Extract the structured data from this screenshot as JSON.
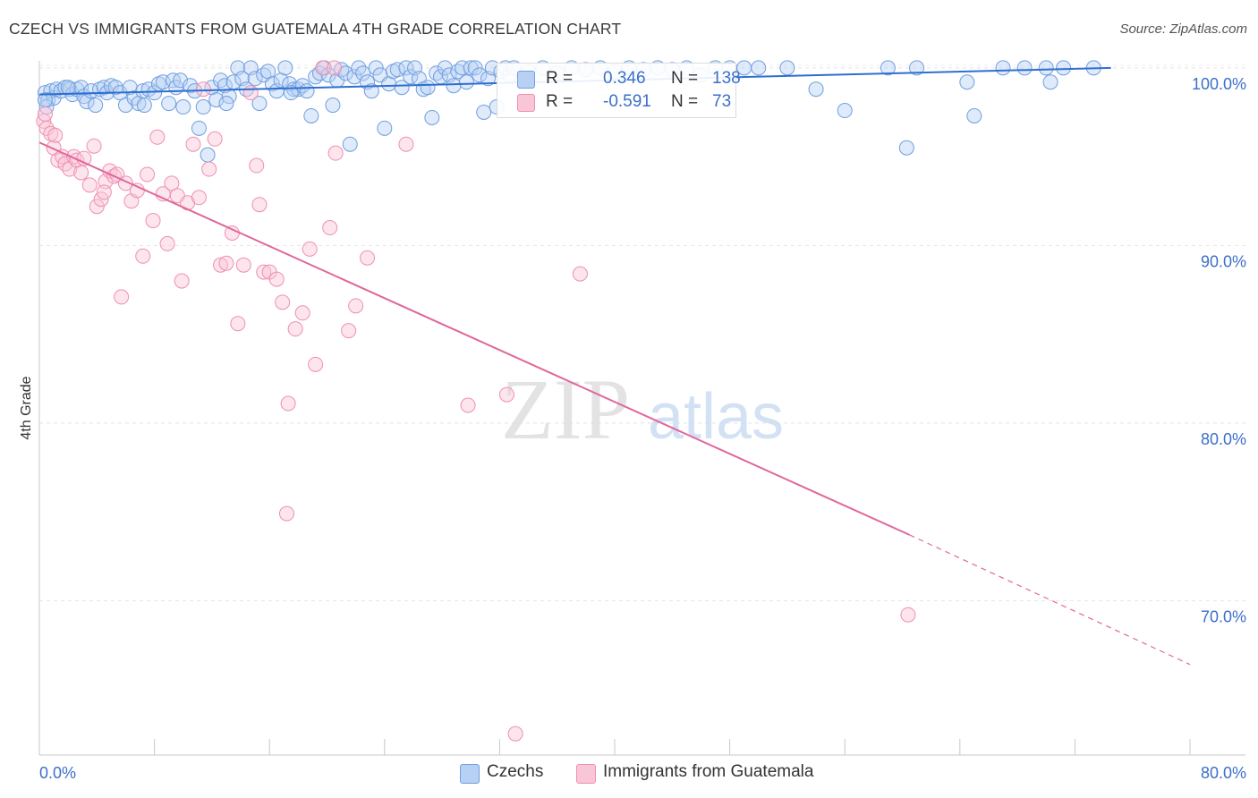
{
  "header": {
    "title": "CZECH VS IMMIGRANTS FROM GUATEMALA 4TH GRADE CORRELATION CHART",
    "source": "Source: ZipAtlas.com"
  },
  "watermark": {
    "zip": "ZIP",
    "atlas": "atlas"
  },
  "legend": {
    "r_label": "R =",
    "n_label": "N =",
    "rows": [
      {
        "r": "0.346",
        "n": "138"
      },
      {
        "r": "-0.591",
        "n": "73"
      }
    ]
  },
  "chart_data": {
    "type": "scatter",
    "title": "CZECH VS IMMIGRANTS FROM GUATEMALA 4TH GRADE CORRELATION CHART",
    "xlabel": "",
    "ylabel": "4th Grade",
    "xlim": [
      0,
      80
    ],
    "ylim": [
      61.3,
      100.8
    ],
    "x_tick_labels": [
      "0.0%",
      "80.0%"
    ],
    "y_ticks": [
      100,
      90,
      80,
      70
    ],
    "y_tick_labels": [
      "100.0%",
      "90.0%",
      "80.0%",
      "70.0%"
    ],
    "grid": true,
    "legend_position": "top-center",
    "colors": {
      "czechs": "#6f9fe0",
      "guatemala": "#f08fb0",
      "czechs_line": "#2f6fd0",
      "guatemala_line": "#e0679a"
    },
    "series": [
      {
        "name": "Czechs",
        "r": 0.346,
        "n": 138,
        "trend": {
          "x": [
            0,
            74.5
          ],
          "y": [
            98.5,
            100.0
          ]
        },
        "points": [
          [
            0.4,
            98.6
          ],
          [
            0.6,
            98.2
          ],
          [
            0.8,
            98.7
          ],
          [
            1.0,
            98.3
          ],
          [
            1.2,
            98.8
          ],
          [
            1.5,
            98.7
          ],
          [
            1.8,
            98.9
          ],
          [
            2.1,
            98.8
          ],
          [
            2.3,
            98.5
          ],
          [
            2.6,
            98.8
          ],
          [
            2.9,
            98.9
          ],
          [
            3.1,
            98.4
          ],
          [
            3.3,
            98.1
          ],
          [
            3.6,
            98.7
          ],
          [
            3.9,
            97.9
          ],
          [
            4.2,
            98.8
          ],
          [
            4.5,
            98.9
          ],
          [
            4.7,
            98.6
          ],
          [
            5.0,
            99.0
          ],
          [
            5.3,
            98.9
          ],
          [
            5.6,
            98.6
          ],
          [
            6.0,
            97.9
          ],
          [
            6.3,
            98.9
          ],
          [
            6.6,
            98.3
          ],
          [
            6.9,
            98.0
          ],
          [
            7.2,
            98.7
          ],
          [
            7.6,
            98.8
          ],
          [
            8.0,
            98.6
          ],
          [
            8.3,
            99.1
          ],
          [
            8.6,
            99.2
          ],
          [
            9.0,
            98.0
          ],
          [
            9.3,
            99.3
          ],
          [
            9.5,
            98.9
          ],
          [
            9.8,
            99.3
          ],
          [
            10.0,
            97.8
          ],
          [
            10.5,
            99.0
          ],
          [
            10.8,
            98.7
          ],
          [
            11.1,
            96.6
          ],
          [
            11.4,
            97.8
          ],
          [
            11.7,
            95.1
          ],
          [
            12.0,
            98.9
          ],
          [
            12.3,
            98.2
          ],
          [
            12.6,
            99.3
          ],
          [
            12.9,
            99.0
          ],
          [
            13.2,
            98.4
          ],
          [
            13.5,
            99.2
          ],
          [
            13.8,
            100.0
          ],
          [
            14.1,
            99.4
          ],
          [
            14.4,
            98.8
          ],
          [
            14.7,
            100.0
          ],
          [
            15.0,
            99.4
          ],
          [
            15.3,
            98.0
          ],
          [
            15.6,
            99.6
          ],
          [
            15.9,
            99.8
          ],
          [
            16.2,
            99.1
          ],
          [
            16.5,
            98.7
          ],
          [
            16.8,
            99.3
          ],
          [
            17.1,
            100.0
          ],
          [
            17.4,
            99.1
          ],
          [
            17.7,
            98.8
          ],
          [
            18.0,
            98.8
          ],
          [
            18.3,
            99.0
          ],
          [
            18.6,
            98.7
          ],
          [
            18.9,
            97.3
          ],
          [
            19.2,
            99.5
          ],
          [
            19.5,
            99.7
          ],
          [
            19.8,
            100.0
          ],
          [
            20.1,
            99.6
          ],
          [
            20.4,
            97.9
          ],
          [
            20.7,
            99.3
          ],
          [
            21.0,
            99.9
          ],
          [
            21.3,
            99.7
          ],
          [
            21.6,
            95.7
          ],
          [
            21.9,
            99.5
          ],
          [
            22.2,
            100.0
          ],
          [
            22.5,
            99.7
          ],
          [
            22.8,
            99.2
          ],
          [
            23.1,
            98.7
          ],
          [
            23.4,
            100.0
          ],
          [
            23.7,
            99.6
          ],
          [
            24.0,
            96.6
          ],
          [
            24.3,
            99.1
          ],
          [
            24.6,
            99.8
          ],
          [
            24.9,
            99.9
          ],
          [
            25.2,
            98.9
          ],
          [
            25.5,
            100.0
          ],
          [
            25.8,
            99.5
          ],
          [
            26.1,
            100.0
          ],
          [
            26.4,
            99.4
          ],
          [
            26.7,
            98.8
          ],
          [
            27.0,
            98.9
          ],
          [
            27.3,
            97.2
          ],
          [
            27.6,
            99.7
          ],
          [
            27.9,
            99.5
          ],
          [
            28.2,
            100.0
          ],
          [
            28.5,
            99.6
          ],
          [
            28.8,
            99.0
          ],
          [
            29.1,
            99.8
          ],
          [
            29.4,
            100.0
          ],
          [
            29.7,
            99.2
          ],
          [
            30.0,
            100.0
          ],
          [
            30.3,
            100.0
          ],
          [
            30.6,
            99.6
          ],
          [
            30.9,
            97.5
          ],
          [
            31.2,
            99.4
          ],
          [
            31.5,
            100.0
          ],
          [
            31.8,
            97.8
          ],
          [
            32.1,
            99.8
          ],
          [
            32.4,
            100.0
          ],
          [
            32.7,
            99.6
          ],
          [
            33.0,
            100.0
          ],
          [
            34.0,
            99.8
          ],
          [
            35.0,
            100.0
          ],
          [
            36.0,
            99.7
          ],
          [
            37.0,
            100.0
          ],
          [
            38.0,
            99.9
          ],
          [
            39.0,
            100.0
          ],
          [
            40.0,
            99.8
          ],
          [
            41.0,
            100.0
          ],
          [
            42.0,
            99.9
          ],
          [
            43.0,
            100.0
          ],
          [
            44.0,
            99.9
          ],
          [
            45.0,
            100.0
          ],
          [
            46.0,
            99.6
          ],
          [
            47.0,
            100.0
          ],
          [
            48.0,
            100.0
          ],
          [
            49.0,
            100.0
          ],
          [
            50.0,
            100.0
          ],
          [
            52.0,
            100.0
          ],
          [
            54.0,
            98.8
          ],
          [
            56.0,
            97.6
          ],
          [
            59.0,
            100.0
          ],
          [
            60.3,
            95.5
          ],
          [
            61.0,
            100.0
          ],
          [
            64.5,
            99.2
          ],
          [
            65.0,
            97.3
          ],
          [
            67.0,
            100.0
          ],
          [
            68.5,
            100.0
          ],
          [
            70.0,
            100.0
          ],
          [
            70.3,
            99.2
          ],
          [
            71.2,
            100.0
          ],
          [
            73.3,
            100.0
          ],
          [
            0.5,
            97.8
          ],
          [
            0.4,
            98.2
          ],
          [
            2.0,
            98.9
          ],
          [
            7.3,
            97.9
          ],
          [
            13.0,
            98.0
          ],
          [
            17.5,
            98.6
          ]
        ]
      },
      {
        "name": "Immigrants from Guatemala",
        "r": -0.591,
        "n": 73,
        "trend": {
          "x": [
            0,
            60.5
          ],
          "y": [
            95.8,
            73.7
          ]
        },
        "trend_dashed": {
          "x": [
            60.5,
            80
          ],
          "y": [
            73.7,
            66.4
          ]
        },
        "points": [
          [
            0.3,
            97.0
          ],
          [
            0.5,
            96.6
          ],
          [
            0.8,
            96.3
          ],
          [
            1.0,
            95.5
          ],
          [
            1.3,
            94.8
          ],
          [
            1.6,
            95.0
          ],
          [
            1.8,
            94.6
          ],
          [
            2.1,
            94.3
          ],
          [
            2.4,
            95.0
          ],
          [
            2.6,
            94.8
          ],
          [
            2.9,
            94.1
          ],
          [
            3.1,
            94.9
          ],
          [
            3.5,
            93.4
          ],
          [
            3.8,
            95.6
          ],
          [
            4.0,
            92.2
          ],
          [
            4.3,
            92.6
          ],
          [
            4.6,
            93.6
          ],
          [
            4.9,
            94.2
          ],
          [
            5.2,
            93.9
          ],
          [
            5.4,
            94.0
          ],
          [
            5.7,
            87.1
          ],
          [
            6.0,
            93.5
          ],
          [
            6.4,
            92.5
          ],
          [
            6.8,
            93.1
          ],
          [
            7.2,
            89.4
          ],
          [
            7.5,
            94.0
          ],
          [
            7.9,
            91.4
          ],
          [
            8.2,
            96.1
          ],
          [
            8.6,
            92.9
          ],
          [
            8.9,
            90.1
          ],
          [
            9.2,
            93.5
          ],
          [
            9.6,
            92.8
          ],
          [
            9.9,
            88.0
          ],
          [
            10.3,
            92.4
          ],
          [
            10.7,
            95.7
          ],
          [
            11.1,
            92.7
          ],
          [
            11.4,
            98.8
          ],
          [
            11.8,
            94.3
          ],
          [
            12.2,
            96.0
          ],
          [
            12.6,
            88.9
          ],
          [
            13.0,
            89.0
          ],
          [
            13.4,
            90.7
          ],
          [
            13.8,
            85.6
          ],
          [
            14.2,
            88.9
          ],
          [
            14.7,
            98.6
          ],
          [
            15.1,
            94.5
          ],
          [
            15.3,
            92.3
          ],
          [
            15.6,
            88.5
          ],
          [
            16.0,
            88.5
          ],
          [
            16.5,
            88.1
          ],
          [
            16.9,
            86.8
          ],
          [
            17.3,
            81.1
          ],
          [
            17.8,
            85.3
          ],
          [
            18.3,
            86.2
          ],
          [
            18.8,
            89.8
          ],
          [
            19.2,
            83.3
          ],
          [
            19.7,
            100.0
          ],
          [
            20.2,
            91.0
          ],
          [
            20.6,
            95.2
          ],
          [
            21.5,
            85.2
          ],
          [
            22.0,
            86.6
          ],
          [
            22.8,
            89.3
          ],
          [
            25.5,
            95.7
          ],
          [
            29.8,
            81.0
          ],
          [
            32.5,
            81.6
          ],
          [
            33.1,
            62.5
          ],
          [
            37.6,
            88.4
          ],
          [
            60.4,
            69.2
          ],
          [
            20.5,
            100.0
          ],
          [
            17.2,
            74.9
          ],
          [
            0.4,
            97.4
          ],
          [
            1.1,
            96.2
          ],
          [
            4.5,
            93.0
          ]
        ]
      }
    ]
  }
}
